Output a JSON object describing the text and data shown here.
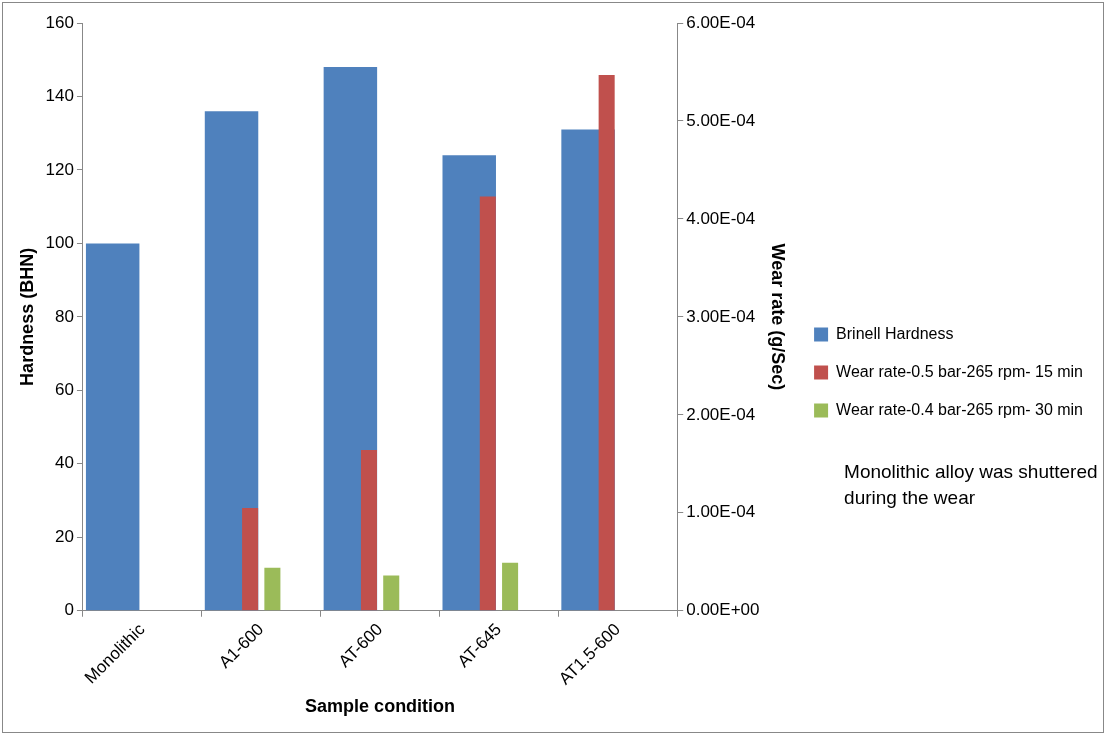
{
  "chart_data": {
    "type": "bar",
    "xlabel": "Sample condition",
    "ylabel": "Hardness (BHN)",
    "y2label": "Wear rate (g/Sec)",
    "categories": [
      "Monolithic",
      "A1-600",
      "AT-600",
      "AT-645",
      "AT1.5-600"
    ],
    "series": [
      {
        "name": "Brinell Hardness",
        "color": "#4f81bd",
        "values": [
          100,
          136,
          148,
          124,
          131
        ]
      },
      {
        "name": "Wear rate-0.5 bar-265 rpm- 15 min",
        "color": "#c0504d",
        "axis": "y2",
        "values": [
          null,
          0.000105,
          0.000164,
          0.000423,
          0.000547
        ]
      },
      {
        "name": "Wear rate-0.4 bar-265 rpm- 30 min",
        "color": "#9bbb59",
        "axis": "y2",
        "values": [
          null,
          4.4e-05,
          3.6e-05,
          4.9e-05,
          null
        ]
      }
    ],
    "ylim": [
      0,
      160
    ],
    "yticks": [
      0,
      20,
      40,
      60,
      80,
      100,
      120,
      140,
      160
    ],
    "y2lim": [
      0,
      0.0006
    ],
    "y2ticks": [
      {
        "value": 0,
        "label": "0.00E+00"
      },
      {
        "value": 0.0001,
        "label": "1.00E-04"
      },
      {
        "value": 0.0002,
        "label": "2.00E-04"
      },
      {
        "value": 0.0003,
        "label": "3.00E-04"
      },
      {
        "value": 0.0004,
        "label": "4.00E-04"
      },
      {
        "value": 0.0005,
        "label": "5.00E-04"
      },
      {
        "value": 0.0006,
        "label": "6.00E-04"
      }
    ],
    "legend": "right",
    "grid": false,
    "annotations": [
      "Monolithic alloy was shuttered during the wear"
    ]
  }
}
